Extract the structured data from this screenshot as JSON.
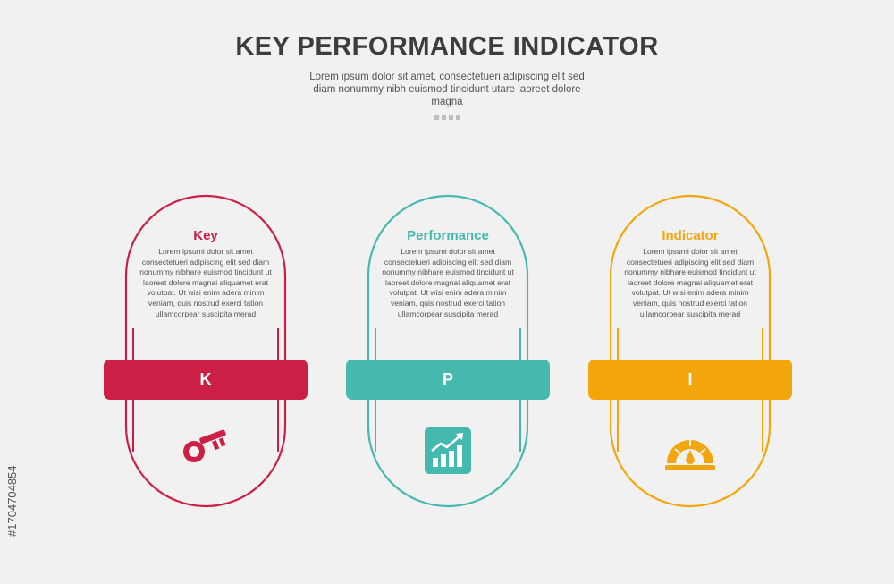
{
  "header": {
    "title": "KEY PERFORMANCE INDICATOR",
    "subtitle": "Lorem ipsum dolor sit amet, consectetueri adipiscing elit sed diam nonummy nibh euismod tincidunt utare laoreet dolore magna"
  },
  "cards": [
    {
      "title": "Key",
      "letter": "K",
      "color": "#cc1f45",
      "icon": "key-icon",
      "desc": "Lorem ipsumi dolor sit amet consectetueri adipiscing elit sed diam nonummy nibhare euismod tincidunt ut laoreet dolore magnai aliquamet erat volutpat. Ut wisi enim adera minim veniam, quis nostrud exerci tation ullamcorpear suscipita merad"
    },
    {
      "title": "Performance",
      "letter": "P",
      "color": "#45b9ae",
      "icon": "growth-chart-icon",
      "desc": "Lorem ipsumi dolor sit amet consectetueri adipiscing elit sed diam nonummy nibhare euismod tincidunt ut laoreet dolore magnai aliquamet erat volutpat. Ut wisi enim adera minim veniam, quis nostrud exerci tation ullamcorpear suscipita merad"
    },
    {
      "title": "Indicator",
      "letter": "I",
      "color": "#f2a60c",
      "icon": "gauge-icon",
      "desc": "Lorem ipsumi dolor sit amet consectetueri adipiscing elit sed diam nonummy nibhare euismod tincidunt ut laoreet dolore magnai aliquamet erat volutpat. Ut wisi enim adera minim veniam, quis nostrud exerci tation ullamcorpear suscipita merad"
    }
  ],
  "watermark": "#1704704854"
}
